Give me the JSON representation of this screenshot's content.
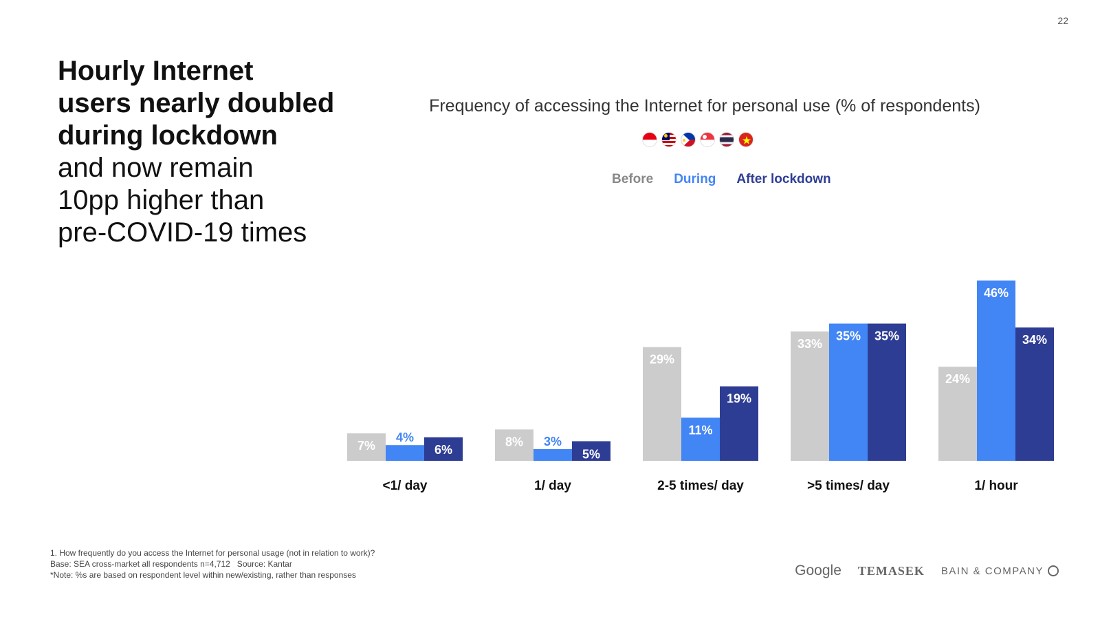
{
  "page_number": "22",
  "headline": {
    "bold_lines": [
      "Hourly Internet",
      "users nearly doubled",
      "during lockdown"
    ],
    "light_lines": [
      "and now remain",
      "10pp higher than",
      "pre-COVID-19 times"
    ]
  },
  "flags": [
    {
      "name": "indonesia-flag-icon"
    },
    {
      "name": "malaysia-flag-icon"
    },
    {
      "name": "philippines-flag-icon"
    },
    {
      "name": "singapore-flag-icon"
    },
    {
      "name": "thailand-flag-icon"
    },
    {
      "name": "vietnam-flag-icon"
    }
  ],
  "legend": {
    "before": "Before",
    "during": "During",
    "after": "After lockdown"
  },
  "colors": {
    "before": "#cccccc",
    "during": "#4285f4",
    "after": "#2e3d94",
    "before_text": "#888888"
  },
  "chart_data": {
    "type": "bar",
    "title": "Frequency of accessing the Internet for personal use (% of respondents)",
    "categories": [
      "<1/ day",
      "1/ day",
      "2-5 times/ day",
      ">5 times/ day",
      "1/ hour"
    ],
    "series": [
      {
        "name": "Before",
        "values": [
          7,
          8,
          29,
          33,
          24
        ],
        "labels": [
          "7%",
          "8%",
          "29%",
          "33%",
          "24%"
        ]
      },
      {
        "name": "During",
        "values": [
          4,
          3,
          11,
          35,
          46
        ],
        "labels": [
          "4%",
          "3%",
          "11%",
          "35%",
          "46%"
        ]
      },
      {
        "name": "After lockdown",
        "values": [
          6,
          5,
          19,
          35,
          34
        ],
        "labels": [
          "6%",
          "5%",
          "19%",
          "35%",
          "34%"
        ]
      }
    ],
    "ylim": [
      0,
      50
    ],
    "grid": false,
    "legend_position": "top"
  },
  "footnotes": [
    "1. How frequently do you access the Internet for personal usage (not in relation to work)?",
    "Base: SEA cross-market all respondents n=4,712   Source: Kantar",
    "*Note: %s are based on respondent level within new/existing, rather than responses"
  ],
  "logos": {
    "google": "Google",
    "temasek": "TEMASEK",
    "bain": "BAIN & COMPANY"
  }
}
